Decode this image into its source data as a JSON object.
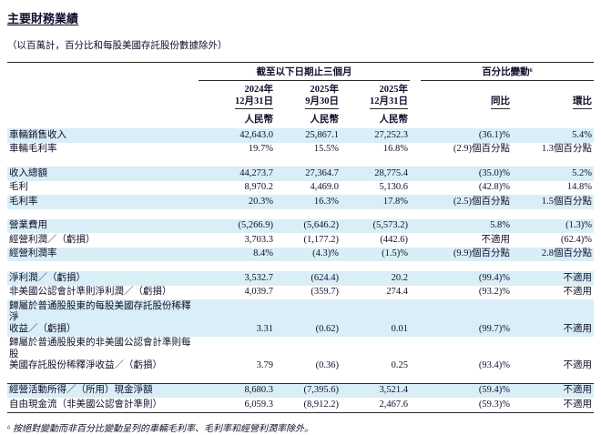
{
  "page": {
    "title": "主要財務業績",
    "subtitle": "（以百萬計，百分比和每股美國存託股份數據除外）",
    "footnote": "⁶ 按絕對變動而非百分比變動呈列的車輛毛利率、毛利率和經營利潤率除外。"
  },
  "colors": {
    "row_highlight": "#d9eef6",
    "text": "#10102c",
    "rule": "#2a2a2a"
  },
  "table": {
    "period_header": "截至以下日期止三個月",
    "change_header": "百分比變動⁶",
    "date_columns": [
      {
        "line1": "2024年",
        "line2": "12月31日",
        "currency": "人民幣"
      },
      {
        "line1": "2025年",
        "line2": "9月30日",
        "currency": "人民幣"
      },
      {
        "line1": "2025年",
        "line2": "12月31日",
        "currency": "人民幣"
      }
    ],
    "change_columns": [
      {
        "label": "同比"
      },
      {
        "label": "環比"
      }
    ],
    "rows": [
      {
        "label": "車輛銷售收入",
        "values": [
          "42,643.0",
          "25,867.1",
          "27,252.3",
          "(36.1)%",
          "5.4%"
        ],
        "shaded": true,
        "gap_before": false,
        "rule_above": false,
        "rule_below": false
      },
      {
        "label": "車輛毛利率",
        "values": [
          "19.7%",
          "15.5%",
          "16.8%",
          "(2.9)個百分點",
          "1.3個百分點"
        ],
        "shaded": false,
        "gap_before": false,
        "rule_above": false,
        "rule_below": false
      },
      {
        "label": "收入總額",
        "values": [
          "44,273.7",
          "27,364.7",
          "28,775.4",
          "(35.0)%",
          "5.2%"
        ],
        "shaded": true,
        "gap_before": true,
        "rule_above": false,
        "rule_below": false
      },
      {
        "label": "毛利",
        "values": [
          "8,970.2",
          "4,469.0",
          "5,130.6",
          "(42.8)%",
          "14.8%"
        ],
        "shaded": false,
        "gap_before": false,
        "rule_above": false,
        "rule_below": false
      },
      {
        "label": "毛利率",
        "values": [
          "20.3%",
          "16.3%",
          "17.8%",
          "(2.5)個百分點",
          "1.5個百分點"
        ],
        "shaded": true,
        "gap_before": false,
        "rule_above": false,
        "rule_below": false
      },
      {
        "label": "營業費用",
        "values": [
          "(5,266.9)",
          "(5,646.2)",
          "(5,573.2)",
          "5.8%",
          "(1.3)%"
        ],
        "shaded": true,
        "gap_before": true,
        "rule_above": false,
        "rule_below": false
      },
      {
        "label": "經營利潤／（虧損）",
        "values": [
          "3,703.3",
          "(1,177.2)",
          "(442.6)",
          "不適用",
          "(62.4)%"
        ],
        "shaded": false,
        "gap_before": false,
        "rule_above": false,
        "rule_below": false
      },
      {
        "label": "經營利潤率",
        "values": [
          "8.4%",
          "(4.3)%",
          "(1.5)%",
          "(9.9)個百分點",
          "2.8個百分點"
        ],
        "shaded": true,
        "gap_before": false,
        "rule_above": false,
        "rule_below": false
      },
      {
        "label": "淨利潤／（虧損）",
        "values": [
          "3,532.7",
          "(624.4)",
          "20.2",
          "(99.4)%",
          "不適用"
        ],
        "shaded": true,
        "gap_before": true,
        "rule_above": false,
        "rule_below": false
      },
      {
        "label": "非美國公認會計準則淨利潤／（虧損）",
        "values": [
          "4,039.7",
          "(359.7)",
          "274.4",
          "(93.2)%",
          "不適用"
        ],
        "shaded": false,
        "gap_before": false,
        "rule_above": false,
        "rule_below": false
      },
      {
        "label": "歸屬於普通股股東的每股美國存託股份稀釋淨\n收益／（虧損）",
        "values": [
          "3.31",
          "(0.62)",
          "0.01",
          "(99.7)%",
          "不適用"
        ],
        "shaded": true,
        "gap_before": false,
        "rule_above": false,
        "rule_below": false
      },
      {
        "label": "歸屬於普通股股東的非美國公認會計準則每股\n美國存託股份稀釋淨收益／（虧損）",
        "values": [
          "3.79",
          "(0.36)",
          "0.25",
          "(93.4)%",
          "不適用"
        ],
        "shaded": false,
        "gap_before": false,
        "rule_above": false,
        "rule_below": false
      },
      {
        "label": "經營活動所得／（所用）現金淨額",
        "values": [
          "8,680.3",
          "(7,395.6)",
          "3,521.4",
          "(59.4)%",
          "不適用"
        ],
        "shaded": true,
        "gap_before": true,
        "rule_above": true,
        "rule_below": false
      },
      {
        "label": "自由現金流（非美國公認會計準則）",
        "values": [
          "6,059.3",
          "(8,912.2)",
          "2,467.6",
          "(59.3)%",
          "不適用"
        ],
        "shaded": false,
        "gap_before": false,
        "rule_above": false,
        "rule_below": true
      }
    ]
  }
}
